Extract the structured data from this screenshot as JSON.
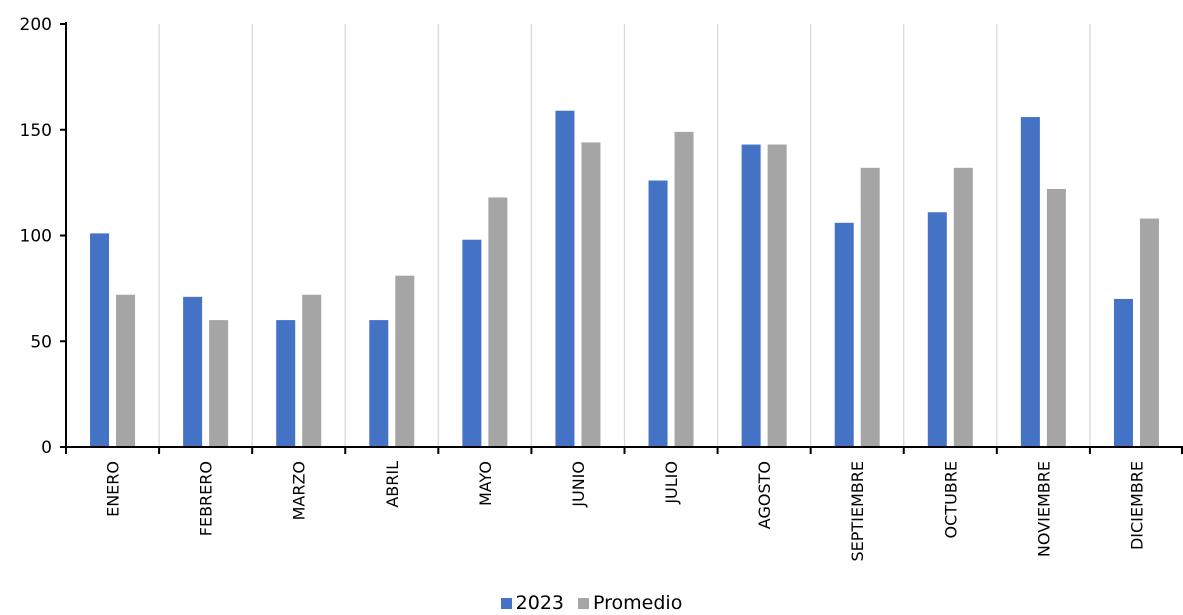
{
  "chart_data": {
    "type": "bar",
    "categories": [
      "ENERO",
      "FEBRERO",
      "MARZO",
      "ABRIL",
      "MAYO",
      "JUNIO",
      "JULIO",
      "AGOSTO",
      "SEPTIEMBRE",
      "OCTUBRE",
      "NOVIEMBRE",
      "DICIEMBRE"
    ],
    "series": [
      {
        "name": "2023",
        "color": "#4472C4",
        "values": [
          101,
          71,
          60,
          60,
          98,
          159,
          126,
          143,
          106,
          111,
          156,
          70
        ]
      },
      {
        "name": "Promedio",
        "color": "#A5A5A5",
        "values": [
          72,
          60,
          72,
          81,
          118,
          144,
          149,
          143,
          132,
          132,
          122,
          108
        ]
      }
    ],
    "yticks": [
      0,
      50,
      100,
      150,
      200
    ],
    "ylim": [
      0,
      200
    ],
    "grid": "vertical category separators",
    "legend": "bottom-center"
  }
}
